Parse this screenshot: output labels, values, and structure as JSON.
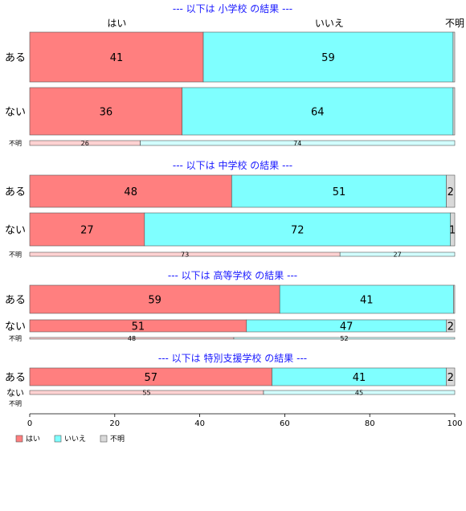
{
  "chart_data": {
    "type": "bar",
    "orientation": "horizontal",
    "stacked": true,
    "percent": true,
    "xlim": [
      0,
      100
    ],
    "xticks": [
      0,
      20,
      40,
      60,
      80,
      100
    ],
    "header_labels": [
      "はい",
      "いいえ",
      "不明"
    ],
    "legend": {
      "placement": "bottom-left",
      "items": [
        {
          "label": "はい",
          "color": "#ff7f7f"
        },
        {
          "label": "いいえ",
          "color": "#7fffff"
        },
        {
          "label": "不明",
          "color": "#d9d9d9"
        }
      ]
    },
    "panels": [
      {
        "title": "--- 以下は 小学校 の結果 ---",
        "rows": [
          {
            "category": "ある",
            "values": [
              41,
              59,
              0.4
            ],
            "labels": [
              "41",
              "59",
              ""
            ]
          },
          {
            "category": "ない",
            "values": [
              36,
              64,
              0.4
            ],
            "labels": [
              "36",
              "64",
              ""
            ]
          },
          {
            "category": "不明",
            "values": [
              26,
              74,
              0
            ],
            "labels": [
              "26",
              "74",
              ""
            ]
          }
        ]
      },
      {
        "title": "--- 以下は 中学校 の結果 ---",
        "rows": [
          {
            "category": "ある",
            "values": [
              48,
              51,
              2
            ],
            "labels": [
              "48",
              "51",
              "2"
            ]
          },
          {
            "category": "ない",
            "values": [
              27,
              72,
              1
            ],
            "labels": [
              "27",
              "72",
              "1"
            ]
          },
          {
            "category": "不明",
            "values": [
              73,
              27,
              0
            ],
            "labels": [
              "73",
              "27",
              ""
            ]
          }
        ]
      },
      {
        "title": "--- 以下は 高等学校 の結果 ---",
        "rows": [
          {
            "category": "ある",
            "values": [
              59,
              41,
              0.3
            ],
            "labels": [
              "59",
              "41",
              ""
            ]
          },
          {
            "category": "ない",
            "values": [
              51,
              47,
              2
            ],
            "labels": [
              "51",
              "47",
              "2"
            ]
          },
          {
            "category": "不明",
            "values": [
              48,
              52,
              0
            ],
            "labels": [
              "48",
              "52",
              ""
            ]
          }
        ]
      },
      {
        "title": "--- 以下は 特別支援学校 の結果 ---",
        "rows": [
          {
            "category": "ある",
            "values": [
              57,
              41,
              2
            ],
            "labels": [
              "57",
              "41",
              "2"
            ]
          },
          {
            "category": "ない",
            "values": [
              55,
              45,
              0
            ],
            "labels": [
              "55",
              "45",
              ""
            ]
          },
          {
            "category": "不明",
            "values": [
              0,
              0,
              0
            ],
            "labels": [
              "",
              "",
              ""
            ]
          }
        ]
      }
    ]
  }
}
